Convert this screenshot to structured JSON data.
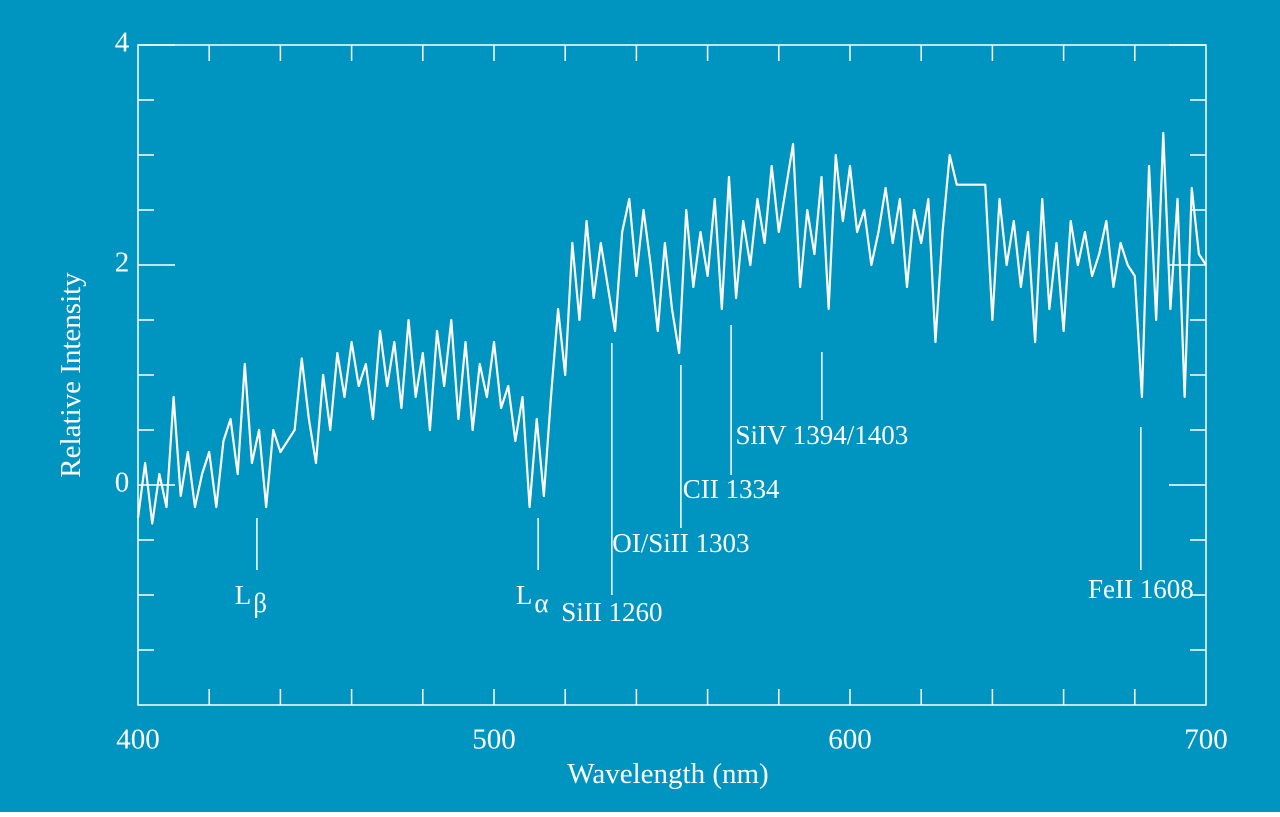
{
  "chart_data": {
    "type": "line",
    "xlabel": "Wavelength (nm)",
    "ylabel": "Relative Intensity",
    "background": "#0095c0",
    "x": [
      400,
      402,
      404,
      406,
      408,
      410,
      412,
      414,
      416,
      418,
      420,
      422,
      424,
      426,
      428,
      430,
      432,
      434,
      436,
      438,
      440,
      442,
      444,
      446,
      448,
      450,
      452,
      454,
      456,
      458,
      460,
      462,
      464,
      466,
      468,
      470,
      472,
      474,
      476,
      478,
      480,
      482,
      484,
      486,
      488,
      490,
      492,
      494,
      496,
      498,
      500,
      502,
      504,
      506,
      508,
      510,
      512,
      514,
      516,
      518,
      520,
      522,
      524,
      526,
      528,
      530,
      532,
      534,
      536,
      538,
      540,
      542,
      544,
      546,
      548,
      550,
      552,
      554,
      556,
      558,
      560,
      562,
      564,
      566,
      568,
      570,
      572,
      574,
      576,
      578,
      580,
      582,
      584,
      586,
      588,
      590,
      592,
      594,
      596,
      598,
      600,
      602,
      604,
      606,
      608,
      610,
      612,
      614,
      616,
      618,
      620,
      622,
      624,
      626,
      628,
      630,
      632,
      634,
      636,
      638,
      640,
      642,
      644,
      646,
      648,
      650,
      652,
      654,
      656,
      658,
      660,
      662,
      664,
      666,
      668,
      670,
      672,
      674,
      676,
      678,
      680,
      682,
      684,
      686,
      688,
      690,
      692,
      694,
      696,
      698,
      700
    ],
    "series": [
      {
        "color": "#ffffff",
        "values": [
          -0.3,
          0.2,
          -0.35,
          0.1,
          -0.2,
          0.8,
          -0.1,
          0.3,
          -0.2,
          0.1,
          0.3,
          -0.2,
          0.4,
          0.6,
          0.1,
          1.1,
          0.2,
          0.5,
          -0.2,
          0.5,
          0.3,
          0.4,
          0.5,
          1.15,
          0.6,
          0.2,
          1.0,
          0.5,
          1.2,
          0.8,
          1.3,
          0.9,
          1.1,
          0.6,
          1.4,
          0.9,
          1.3,
          0.7,
          1.5,
          0.8,
          1.2,
          0.5,
          1.4,
          0.9,
          1.5,
          0.6,
          1.3,
          0.5,
          1.1,
          0.8,
          1.3,
          0.7,
          0.9,
          0.4,
          0.8,
          -0.2,
          0.6,
          -0.1,
          0.8,
          1.6,
          1.0,
          2.2,
          1.5,
          2.4,
          1.7,
          2.2,
          1.8,
          1.4,
          2.3,
          2.6,
          1.9,
          2.5,
          2.0,
          1.4,
          2.2,
          1.6,
          1.2,
          2.5,
          1.8,
          2.3,
          1.9,
          2.6,
          1.6,
          2.8,
          1.7,
          2.4,
          2.0,
          2.6,
          2.2,
          2.9,
          2.3,
          2.7,
          3.1,
          1.8,
          2.5,
          2.1,
          2.8,
          1.6,
          3.0,
          2.4,
          2.9,
          2.3,
          2.5,
          2.0,
          2.3,
          2.7,
          2.2,
          2.6,
          1.8,
          2.5,
          2.2,
          2.6,
          1.3,
          2.3,
          3.0,
          2.73,
          2.73,
          2.73,
          2.73,
          2.73,
          1.5,
          2.6,
          2.0,
          2.4,
          1.8,
          2.3,
          1.3,
          2.6,
          1.6,
          2.2,
          1.4,
          2.4,
          2.0,
          2.3,
          1.9,
          2.1,
          2.4,
          1.8,
          2.2,
          2.0,
          1.9,
          0.8,
          2.9,
          1.5,
          3.2,
          1.6,
          2.6,
          0.8,
          2.7,
          2.1,
          2.0
        ]
      }
    ],
    "xlim": [
      400,
      700
    ],
    "xticks": [
      400,
      500,
      600,
      700
    ],
    "xminorticks": [
      420,
      440,
      460,
      480,
      500,
      520,
      540,
      560,
      580,
      600,
      620,
      640,
      660,
      680
    ],
    "ylim": [
      -2,
      4
    ],
    "yticks": [
      0,
      2,
      4
    ],
    "yminorticks": [
      -1.5,
      -1,
      -0.5,
      0.5,
      1,
      1.5,
      2.5,
      3,
      3.5
    ],
    "annotations": [
      {
        "text": "L",
        "sub": "β",
        "x": 433.4
      },
      {
        "text": "L",
        "sub": "α",
        "x": 512.4
      },
      {
        "text": "SiII 1260",
        "x": 533.1
      },
      {
        "text": "OI/SiII 1303",
        "x": 552.5
      },
      {
        "text": "CII 1334",
        "x": 566.6
      },
      {
        "text": "SiIV 1394/1403",
        "x": 592.1
      },
      {
        "text": "FeII 1608",
        "x": 681.7
      }
    ]
  }
}
